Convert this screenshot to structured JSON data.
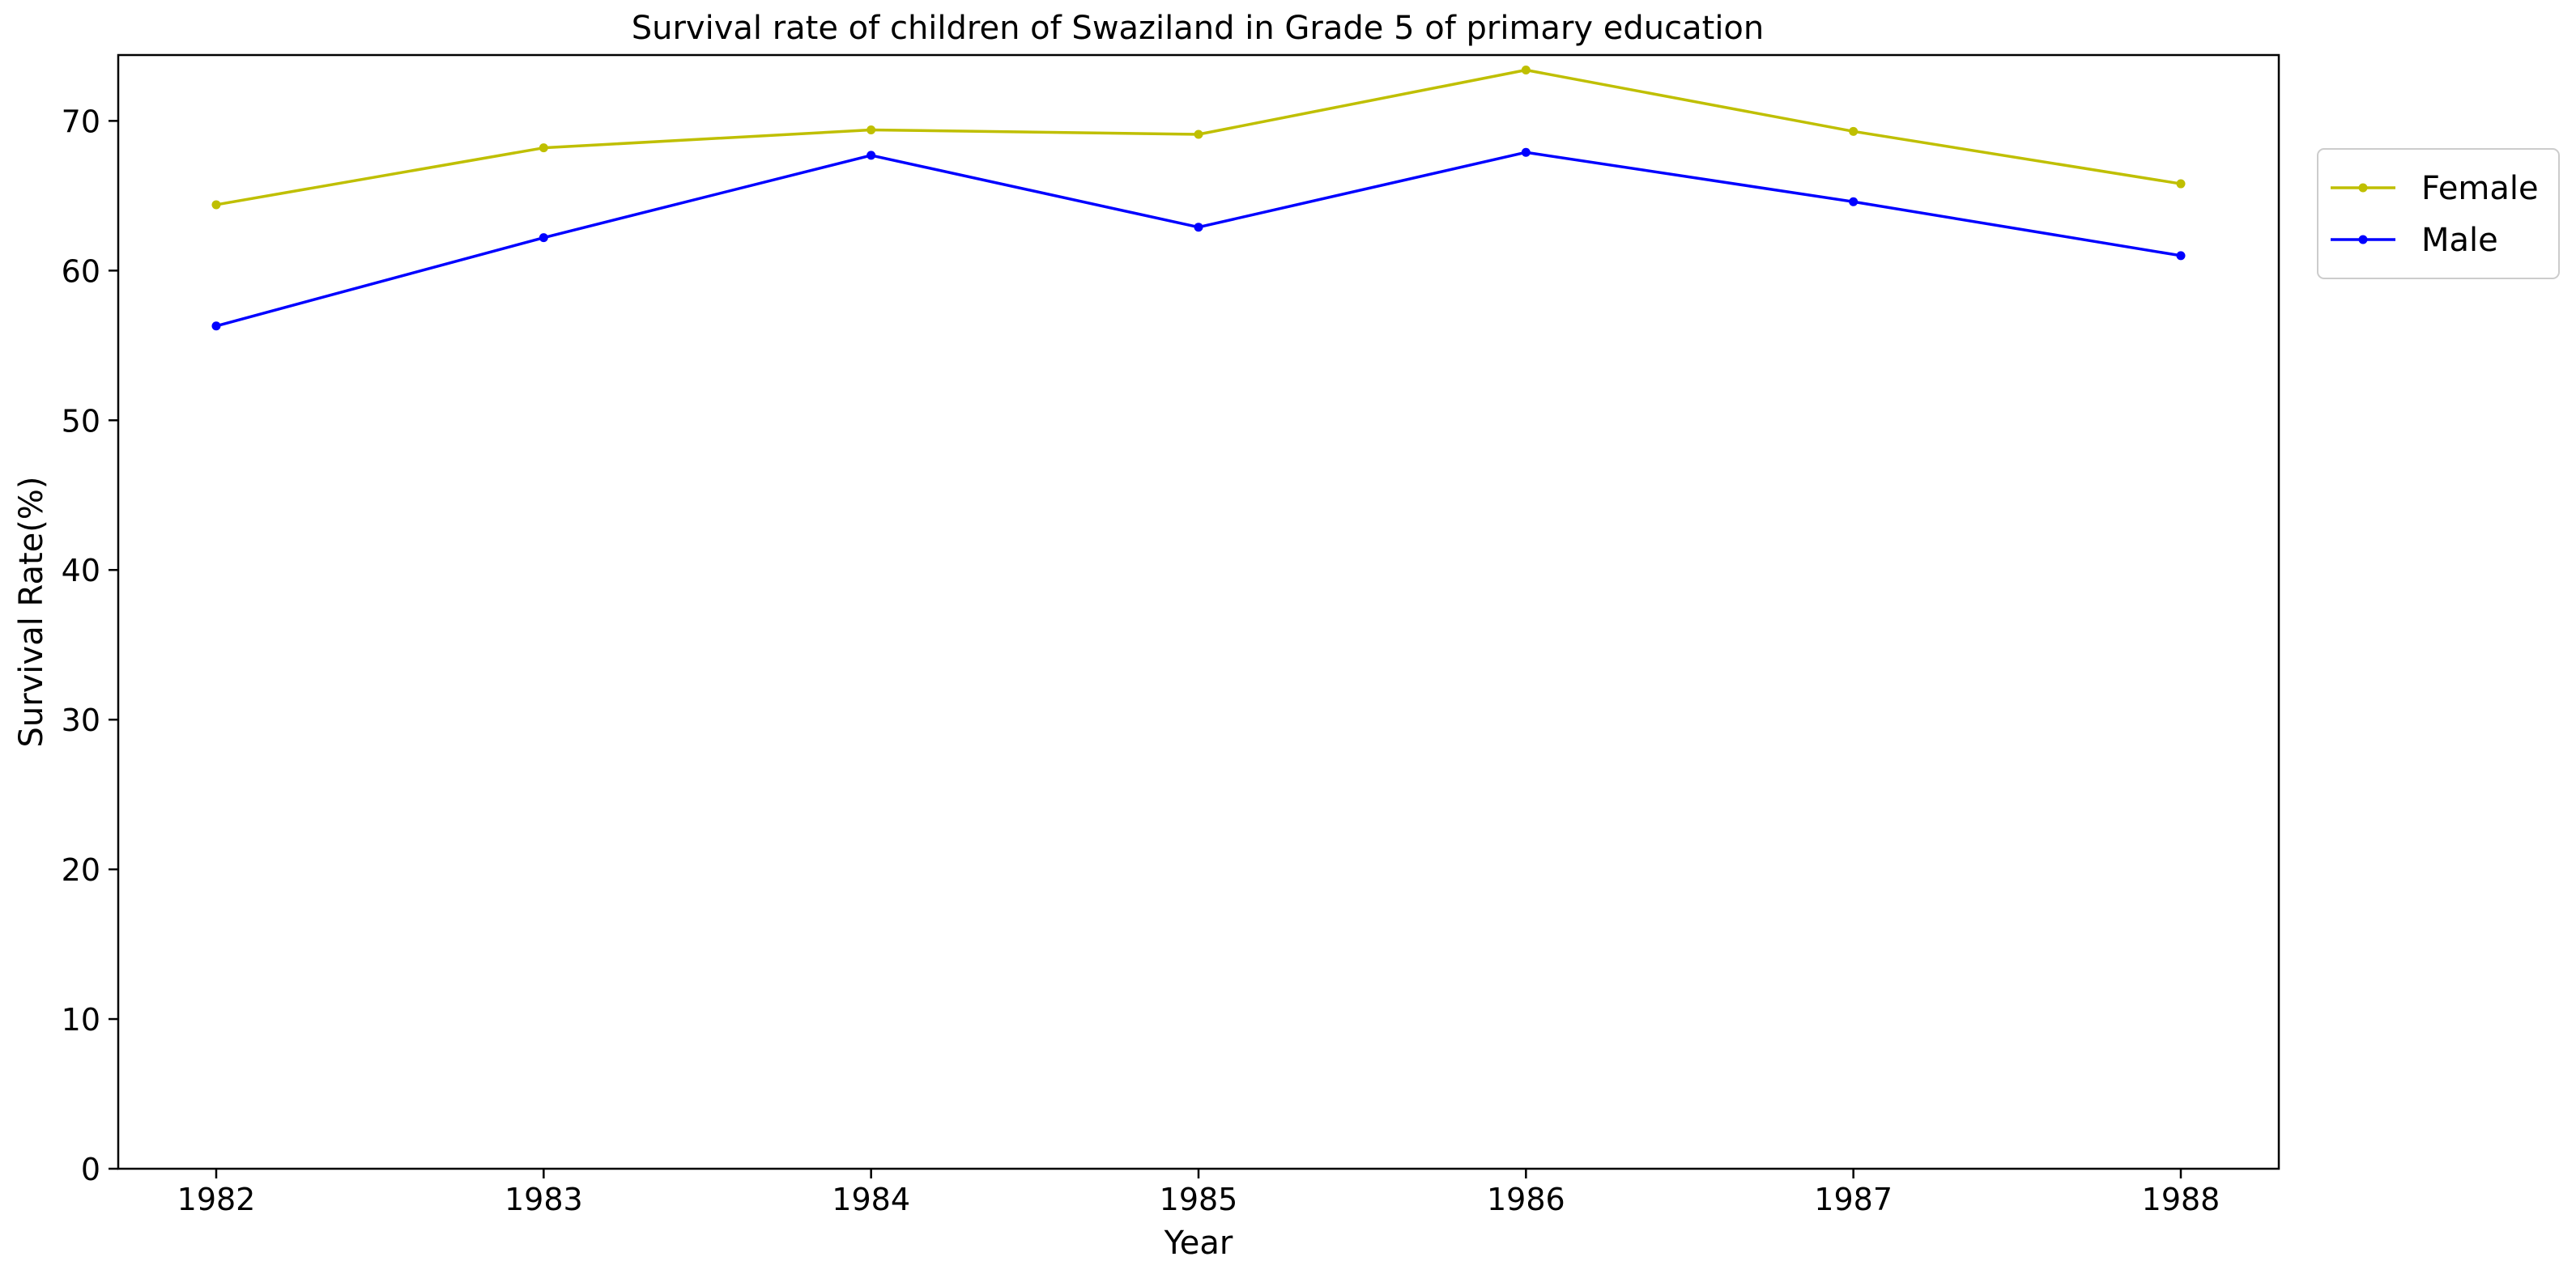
{
  "chart_data": {
    "type": "line",
    "title": "Survival rate of children of Swaziland in Grade 5 of primary education",
    "xlabel": "Year",
    "ylabel": "Survival Rate(%)",
    "categories": [
      "1982",
      "1983",
      "1984",
      "1985",
      "1986",
      "1987",
      "1988"
    ],
    "ylim": [
      0,
      74.4
    ],
    "yticks": [
      0,
      10,
      20,
      30,
      40,
      50,
      60,
      70
    ],
    "grid": false,
    "legend_position": "right-top",
    "series": [
      {
        "name": "Female",
        "color": "#bfbf00",
        "values": [
          64.4,
          68.2,
          69.4,
          69.1,
          73.4,
          69.3,
          65.8
        ]
      },
      {
        "name": "Male",
        "color": "#0000ff",
        "values": [
          56.3,
          62.2,
          67.7,
          62.9,
          67.9,
          64.6,
          61.0
        ]
      }
    ]
  }
}
